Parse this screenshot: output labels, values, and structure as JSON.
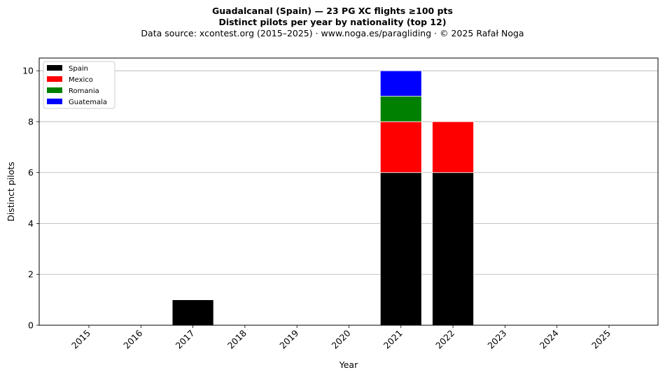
{
  "header": {
    "title": "Guadalcanal (Spain)  —  23 PG XC flights ≥100 pts",
    "subtitle": "Distinct pilots per year by nationality (top 12)",
    "source": "Data source: xcontest.org (2015–2025)  ·  www.noga.es/paragliding  ·  © 2025 Rafał Noga"
  },
  "chart_data": {
    "type": "bar",
    "stacked": true,
    "title": "Guadalcanal (Spain)  —  23 PG XC flights ≥100 pts",
    "subtitle": "Distinct pilots per year by nationality (top 12)",
    "xlabel": "Year",
    "ylabel": "Distinct pilots",
    "ylim": [
      0,
      10.5
    ],
    "yticks": [
      0,
      2,
      4,
      6,
      8,
      10
    ],
    "grid": "y",
    "legend_position": "top-left",
    "categories": [
      "2015",
      "2016",
      "2017",
      "2018",
      "2019",
      "2020",
      "2021",
      "2022",
      "2023",
      "2024",
      "2025"
    ],
    "series": [
      {
        "name": "Spain",
        "color": "#000000",
        "values": [
          0,
          0,
          1,
          0,
          0,
          0,
          6,
          6,
          0,
          0,
          0
        ]
      },
      {
        "name": "Mexico",
        "color": "#ff0000",
        "values": [
          0,
          0,
          0,
          0,
          0,
          0,
          2,
          2,
          0,
          0,
          0
        ]
      },
      {
        "name": "Romania",
        "color": "#008000",
        "values": [
          0,
          0,
          0,
          0,
          0,
          0,
          1,
          0,
          0,
          0,
          0
        ]
      },
      {
        "name": "Guatemala",
        "color": "#0000ff",
        "values": [
          0,
          0,
          0,
          0,
          0,
          0,
          1,
          0,
          0,
          0,
          0
        ]
      }
    ]
  }
}
